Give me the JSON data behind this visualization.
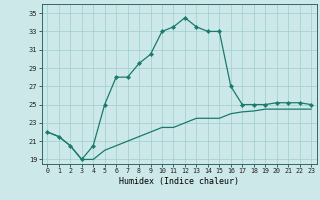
{
  "xlabel": "Humidex (Indice chaleur)",
  "ylabel": "",
  "background_color": "#cde8e8",
  "line_color": "#1a7a6e",
  "grid_color": "#9ecece",
  "x_values": [
    0,
    1,
    2,
    3,
    4,
    5,
    6,
    7,
    8,
    9,
    10,
    11,
    12,
    13,
    14,
    15,
    16,
    17,
    18,
    19,
    20,
    21,
    22,
    23
  ],
  "line1_y": [
    22.0,
    21.5,
    20.5,
    19.0,
    20.5,
    25.0,
    28.0,
    28.0,
    29.5,
    30.5,
    33.0,
    33.5,
    34.5,
    33.5,
    33.0,
    33.0,
    27.0,
    25.0,
    25.0,
    25.0,
    25.2,
    25.2,
    25.2,
    25.0
  ],
  "line2_y": [
    22.0,
    21.5,
    20.5,
    19.0,
    19.0,
    20.0,
    20.5,
    21.0,
    21.5,
    22.0,
    22.5,
    22.5,
    23.0,
    23.5,
    23.5,
    23.5,
    24.0,
    24.2,
    24.3,
    24.5,
    24.5,
    24.5,
    24.5,
    24.5
  ],
  "ylim": [
    18.5,
    36.0
  ],
  "xlim": [
    -0.5,
    23.5
  ],
  "yticks": [
    19,
    21,
    23,
    25,
    27,
    29,
    31,
    33,
    35
  ],
  "xticks": [
    0,
    1,
    2,
    3,
    4,
    5,
    6,
    7,
    8,
    9,
    10,
    11,
    12,
    13,
    14,
    15,
    16,
    17,
    18,
    19,
    20,
    21,
    22,
    23
  ]
}
